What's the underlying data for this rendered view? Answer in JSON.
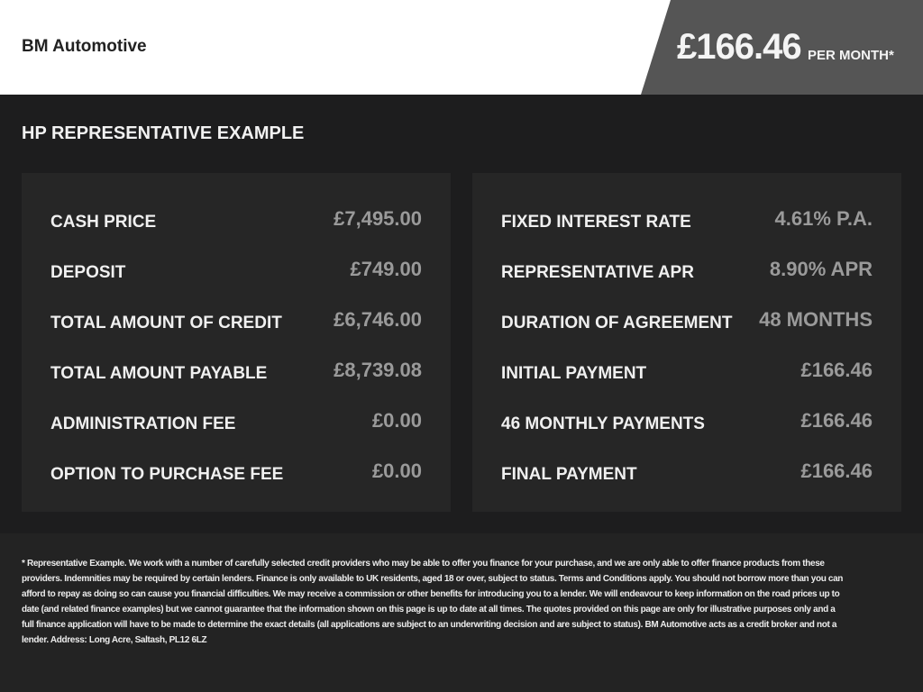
{
  "header": {
    "brand": "BM Automotive",
    "monthly_price": "£166.46",
    "per_month": "PER MONTH*"
  },
  "title": "HP REPRESENTATIVE EXAMPLE",
  "left": [
    {
      "label": "CASH PRICE",
      "value": "£7,495.00"
    },
    {
      "label": "DEPOSIT",
      "value": "£749.00"
    },
    {
      "label": "TOTAL AMOUNT OF CREDIT",
      "value": "£6,746.00"
    },
    {
      "label": "TOTAL AMOUNT PAYABLE",
      "value": "£8,739.08"
    },
    {
      "label": "ADMINISTRATION FEE",
      "value": "£0.00"
    },
    {
      "label": "OPTION TO PURCHASE FEE",
      "value": "£0.00"
    }
  ],
  "right": [
    {
      "label": "FIXED INTEREST RATE",
      "value": "4.61% P.A."
    },
    {
      "label": "REPRESENTATIVE APR",
      "value": "8.90% APR"
    },
    {
      "label": "DURATION OF AGREEMENT",
      "value": "48 MONTHS"
    },
    {
      "label": "INITIAL PAYMENT",
      "value": "£166.46"
    },
    {
      "label": "46 MONTHLY PAYMENTS",
      "value": "£166.46"
    },
    {
      "label": "FINAL PAYMENT",
      "value": "£166.46"
    }
  ],
  "disclaimer": [
    "* Representative Example. We work with a number of carefully selected credit providers who may be able to offer you finance for your purchase, and we are only able to offer finance products from these",
    "providers. Indemnities may be required by certain lenders. Finance is only available to UK residents, aged 18 or over, subject to status. Terms and Conditions apply. You should not borrow more than you can",
    "afford to repay as doing so can cause you financial difficulties. We may receive a commission or other benefits for introducing you to a lender. We will endeavour to keep information on the road prices up to",
    "date (and related finance examples) but we cannot guarantee that the information shown on this page is up to date at all times. The quotes provided on this page are only for illustrative purposes only and a",
    "full finance application will have to be made to determine the exact details (all applications are subject to an underwriting decision and are subject to status). BM Automotive acts as a credit broker and not a",
    "lender. Address: Long Acre, Saltash, PL12 6LZ"
  ]
}
